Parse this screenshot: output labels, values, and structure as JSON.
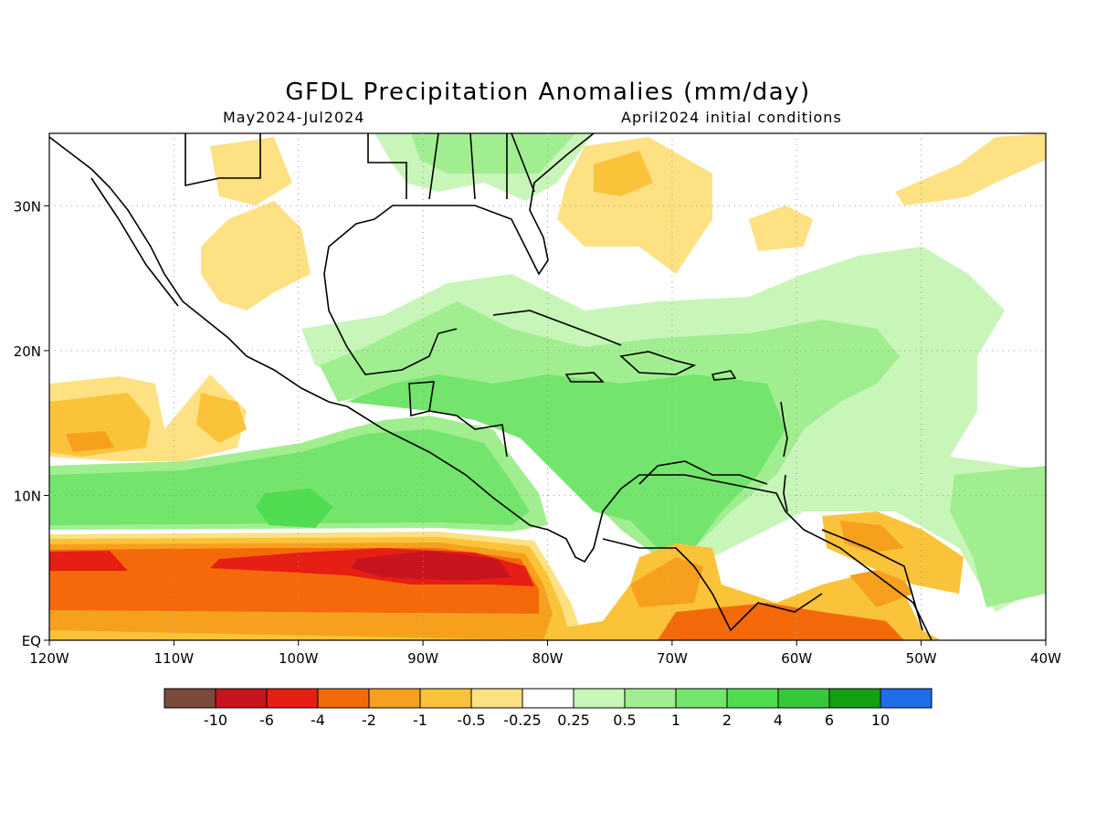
{
  "title": "GFDL Precipitation Anomalies (mm/day)",
  "subtitle_left": "May2024-Jul2024",
  "subtitle_right": "April2024 initial conditions",
  "map": {
    "lon_range": [
      -120,
      -40
    ],
    "lat_range": [
      0,
      35
    ],
    "x_ticks": [
      "120W",
      "110W",
      "100W",
      "90W",
      "80W",
      "70W",
      "60W",
      "50W",
      "40W"
    ],
    "y_ticks": [
      "EQ",
      "10N",
      "20N",
      "30N"
    ],
    "grid": true
  },
  "colorbar": {
    "colors": [
      "#7a4a3a",
      "#c8141e",
      "#e61e14",
      "#f46a0a",
      "#f7a01e",
      "#fbc33a",
      "#fde182",
      "#ffffff",
      "#c8f5b8",
      "#a0ee90",
      "#73e46c",
      "#50dc50",
      "#36c83a",
      "#14a014",
      "#1e6eeb"
    ],
    "labels": [
      "-10",
      "-6",
      "-4",
      "-2",
      "-1",
      "-0.5",
      "-0.25",
      "0.25",
      "0.5",
      "1",
      "2",
      "4",
      "6",
      "10"
    ]
  }
}
